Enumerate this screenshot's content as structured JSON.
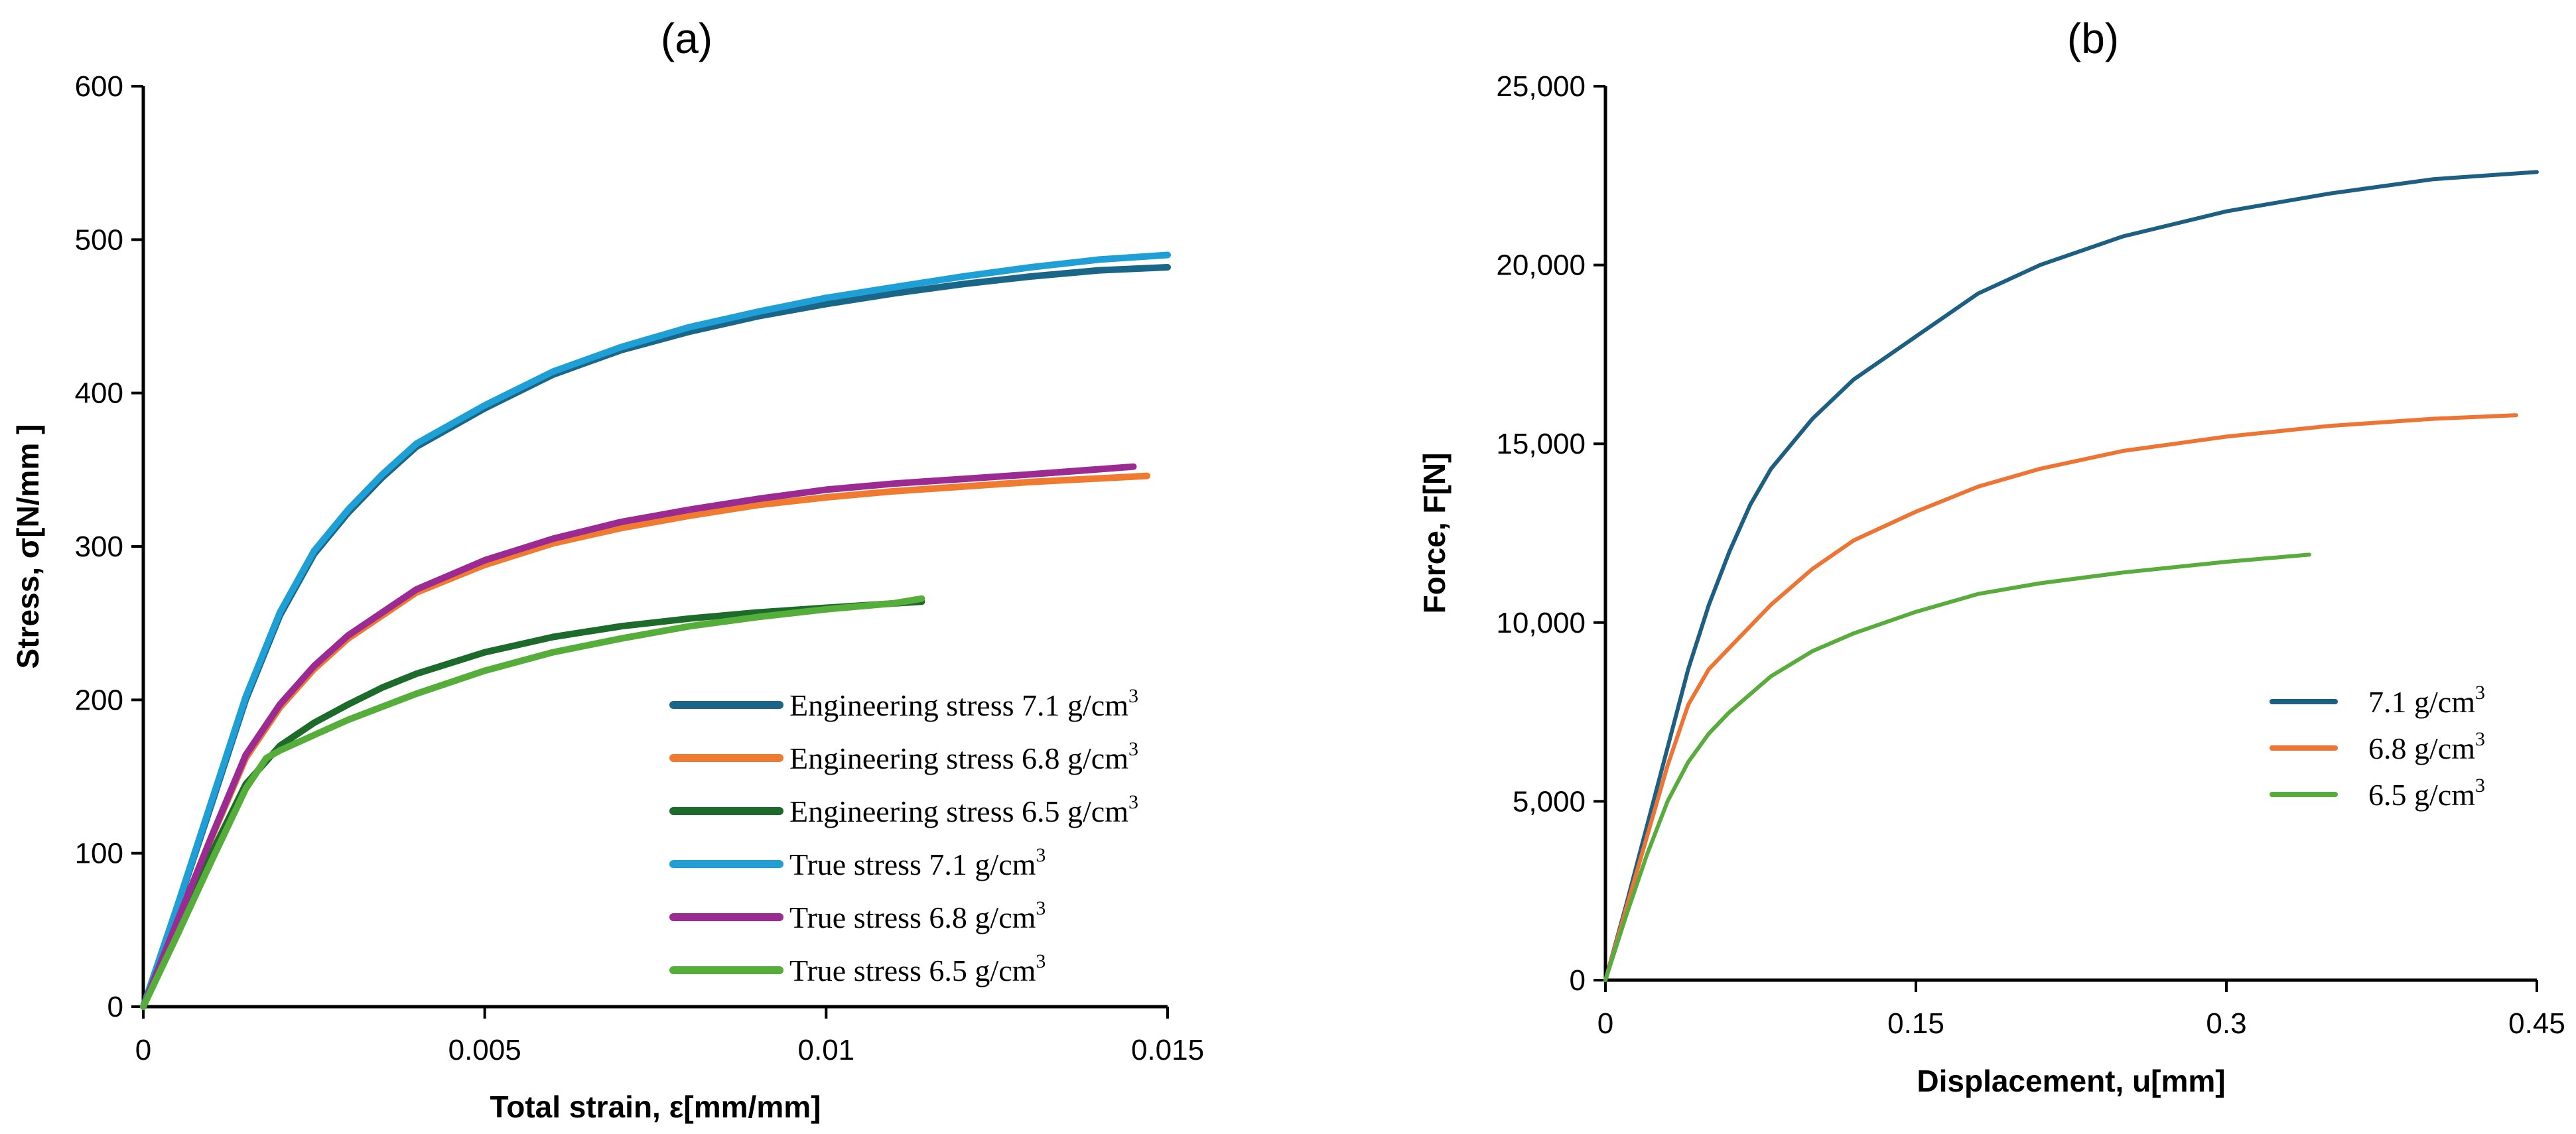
{
  "chart_data": [
    {
      "type": "line",
      "title": "(a)",
      "xlabel": "Total strain, ε[mm/mm]",
      "ylabel": "Stress, σ[N/mm ]",
      "xlim": [
        0,
        0.015
      ],
      "ylim": [
        0,
        600
      ],
      "xticks": [
        0,
        0.005,
        0.01,
        0.015
      ],
      "xtick_labels": [
        "0",
        "0.005",
        "0.01",
        "0.015"
      ],
      "yticks": [
        0,
        100,
        200,
        300,
        400,
        500,
        600
      ],
      "ytick_labels": [
        "0",
        "100",
        "200",
        "300",
        "400",
        "500",
        "600"
      ],
      "legend_position": "bottom-right",
      "unit_label": "g/cm",
      "unit_superscript": "3",
      "series": [
        {
          "name": "Engineering stress 7.1",
          "label_main": "Engineering stress 7.1 g/cm",
          "color": "#1a6688",
          "stroke": 10,
          "x": [
            0,
            0.0005,
            0.001,
            0.0015,
            0.002,
            0.0025,
            0.003,
            0.0035,
            0.004,
            0.005,
            0.006,
            0.007,
            0.008,
            0.009,
            0.01,
            0.011,
            0.012,
            0.013,
            0.014,
            0.015
          ],
          "y": [
            0,
            65,
            132,
            200,
            255,
            295,
            322,
            345,
            365,
            390,
            412,
            428,
            440,
            450,
            458,
            465,
            471,
            476,
            480,
            482
          ]
        },
        {
          "name": "Engineering stress 6.8",
          "label_main": "Engineering stress 6.8 g/cm",
          "color": "#f07a30",
          "stroke": 10,
          "x": [
            0,
            0.0005,
            0.001,
            0.0015,
            0.002,
            0.0025,
            0.003,
            0.004,
            0.005,
            0.006,
            0.007,
            0.008,
            0.009,
            0.01,
            0.011,
            0.012,
            0.013,
            0.0147
          ],
          "y": [
            0,
            55,
            110,
            162,
            195,
            220,
            240,
            270,
            288,
            302,
            312,
            320,
            327,
            332,
            336,
            339,
            342,
            346
          ]
        },
        {
          "name": "Engineering stress 6.5",
          "label_main": "Engineering stress 6.5 g/cm",
          "color": "#1c6b2a",
          "stroke": 10,
          "x": [
            0,
            0.0005,
            0.001,
            0.0015,
            0.002,
            0.0025,
            0.003,
            0.0035,
            0.004,
            0.005,
            0.006,
            0.007,
            0.008,
            0.009,
            0.01,
            0.0114
          ],
          "y": [
            0,
            50,
            100,
            145,
            170,
            185,
            197,
            208,
            217,
            231,
            241,
            248,
            253,
            257,
            260,
            264
          ]
        },
        {
          "name": "True stress 7.1",
          "label_main": "True stress 7.1 g/cm",
          "color": "#1e9fd6",
          "stroke": 10,
          "x": [
            0,
            0.0005,
            0.001,
            0.0015,
            0.002,
            0.0025,
            0.003,
            0.0035,
            0.004,
            0.005,
            0.006,
            0.007,
            0.008,
            0.009,
            0.01,
            0.011,
            0.012,
            0.013,
            0.014,
            0.015
          ],
          "y": [
            0,
            66,
            134,
            202,
            257,
            297,
            324,
            347,
            367,
            392,
            414,
            430,
            443,
            453,
            462,
            469,
            476,
            482,
            487,
            490
          ]
        },
        {
          "name": "True stress 6.8",
          "label_main": "True stress 6.8 g/cm",
          "color": "#9b2a92",
          "stroke": 10,
          "x": [
            0,
            0.0005,
            0.001,
            0.0015,
            0.002,
            0.0025,
            0.003,
            0.004,
            0.005,
            0.006,
            0.007,
            0.008,
            0.009,
            0.01,
            0.011,
            0.012,
            0.013,
            0.0145
          ],
          "y": [
            0,
            56,
            111,
            164,
            197,
            222,
            242,
            272,
            291,
            305,
            316,
            324,
            331,
            337,
            341,
            344,
            347,
            352
          ]
        },
        {
          "name": "True stress 6.5",
          "label_main": "True stress 6.5 g/cm",
          "color": "#55ad3a",
          "stroke": 10,
          "x": [
            0,
            0.0005,
            0.001,
            0.0015,
            0.0018,
            0.002,
            0.0025,
            0.003,
            0.004,
            0.005,
            0.006,
            0.007,
            0.008,
            0.009,
            0.01,
            0.011,
            0.0114
          ],
          "y": [
            0,
            47,
            95,
            142,
            162,
            167,
            177,
            187,
            204,
            219,
            231,
            240,
            248,
            254,
            259,
            263,
            266
          ]
        }
      ]
    },
    {
      "type": "line",
      "title": "(b)",
      "xlabel": "Displacement, u[mm]",
      "ylabel": "Force, F[N]",
      "xlim": [
        0,
        0.45
      ],
      "ylim": [
        0,
        25000
      ],
      "xticks": [
        0,
        0.15,
        0.3,
        0.45
      ],
      "xtick_labels": [
        "0",
        "0.15",
        "0.3",
        "0.45"
      ],
      "yticks": [
        0,
        5000,
        10000,
        15000,
        20000,
        25000
      ],
      "ytick_labels": [
        "0",
        "5,000",
        "10,000",
        "15,000",
        "20,000",
        "25,000"
      ],
      "legend_position": "right",
      "unit_label": "g/cm",
      "unit_superscript": "3",
      "series": [
        {
          "name": "7.1",
          "label_main": "7.1 g/cm",
          "color": "#1d5f82",
          "stroke": 6,
          "x": [
            0,
            0.01,
            0.02,
            0.03,
            0.04,
            0.05,
            0.06,
            0.07,
            0.08,
            0.1,
            0.12,
            0.15,
            0.18,
            0.21,
            0.25,
            0.3,
            0.35,
            0.4,
            0.45
          ],
          "y": [
            0,
            2100,
            4300,
            6500,
            8700,
            10500,
            12000,
            13300,
            14300,
            15700,
            16800,
            18000,
            19200,
            20000,
            20800,
            21500,
            22000,
            22400,
            22600
          ]
        },
        {
          "name": "6.8",
          "label_main": "6.8 g/cm",
          "color": "#ee7434",
          "stroke": 6,
          "x": [
            0,
            0.01,
            0.02,
            0.03,
            0.04,
            0.05,
            0.06,
            0.07,
            0.08,
            0.1,
            0.12,
            0.15,
            0.18,
            0.21,
            0.25,
            0.3,
            0.35,
            0.4,
            0.44
          ],
          "y": [
            0,
            2000,
            4000,
            6000,
            7700,
            8700,
            9300,
            9900,
            10500,
            11500,
            12300,
            13100,
            13800,
            14300,
            14800,
            15200,
            15500,
            15700,
            15800
          ]
        },
        {
          "name": "6.5",
          "label_main": "6.5 g/cm",
          "color": "#58ac3c",
          "stroke": 6,
          "x": [
            0,
            0.01,
            0.02,
            0.03,
            0.04,
            0.05,
            0.06,
            0.07,
            0.08,
            0.1,
            0.12,
            0.15,
            0.18,
            0.21,
            0.25,
            0.3,
            0.34
          ],
          "y": [
            0,
            1800,
            3500,
            5000,
            6100,
            6900,
            7500,
            8000,
            8500,
            9200,
            9700,
            10300,
            10800,
            11100,
            11400,
            11700,
            11900
          ]
        }
      ]
    }
  ]
}
